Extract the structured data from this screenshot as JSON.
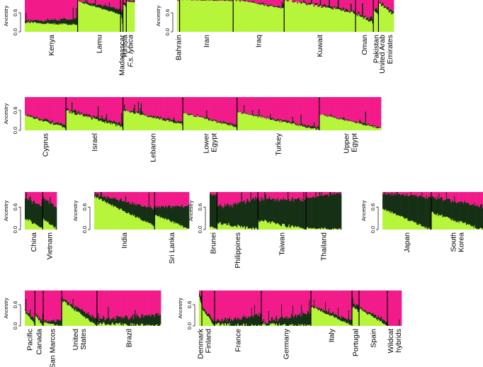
{
  "colors": {
    "clusterA": "#b7f53b",
    "clusterB": "#f21b8a",
    "clusterC": "#163016",
    "separator": "#000000"
  },
  "chart_data": [
    {
      "type": "bar",
      "stacked": true,
      "ylabel": "Ancestry",
      "ylim": [
        0,
        1
      ],
      "yticks": [
        "0.0",
        "0.6"
      ],
      "panels": [
        {
          "groups": [
            {
              "name": "Kenya",
              "n": 64,
              "a": [
                0.3,
                0.22
              ],
              "c": [
                0.04,
                0.18
              ],
              "sp": 0.06
            },
            {
              "name": "Lamu",
              "n": 52,
              "a": [
                0.96,
                0.55
              ],
              "c": [
                0.01,
                0.16
              ],
              "sp": 0.04
            },
            {
              "name": "Madagascar",
              "n": 3,
              "a": [
                0.55,
                0.3
              ],
              "c": [
                0.1,
                0.4
              ],
              "sp": 0.1
            },
            {
              "name": "Tunisia",
              "n": 4,
              "a": [
                0.85,
                0.8
              ],
              "c": [
                0.05,
                0.1
              ],
              "sp": 0.05
            },
            {
              "name": "F.s. lybica",
              "n": 10,
              "a": [
                0.95,
                0.93
              ],
              "c": [
                0.02,
                0.03
              ],
              "sp": 0.03
            }
          ]
        },
        {
          "groups": [
            {
              "name": "Bahrain",
              "n": 2,
              "a": [
                0.97,
                0.97
              ],
              "c": [
                0.0,
                0.0
              ],
              "sp": 0.01
            },
            {
              "name": "Iran",
              "n": 42,
              "a": [
                1.0,
                0.97
              ],
              "c": [
                0.0,
                0.01
              ],
              "sp": 0.02
            },
            {
              "name": "Iraq",
              "n": 40,
              "a": [
                1.0,
                0.74
              ],
              "c": [
                0.0,
                0.04
              ],
              "sp": 0.05
            },
            {
              "name": "Kuwait",
              "n": 56,
              "a": [
                1.0,
                0.6
              ],
              "c": [
                0.0,
                0.05
              ],
              "sp": 0.08
            },
            {
              "name": "Oman",
              "n": 14,
              "a": [
                0.55,
                0.3
              ],
              "c": [
                0.02,
                0.1
              ],
              "sp": 0.1
            },
            {
              "name": "Pakistan",
              "n": 4,
              "a": [
                0.7,
                0.6
              ],
              "c": [
                0.05,
                0.1
              ],
              "sp": 0.1
            },
            {
              "name": "United Arab Emirates",
              "n": 12,
              "a": [
                0.9,
                0.55
              ],
              "c": [
                0.01,
                0.08
              ],
              "sp": 0.08
            }
          ]
        },
        {
          "groups": [
            {
              "name": "Cyprus",
              "n": 44,
              "a": [
                0.45,
                0.08
              ],
              "c": [
                0.02,
                0.06
              ],
              "sp": 0.06
            },
            {
              "name": "Israel",
              "n": 61,
              "a": [
                0.58,
                0.1
              ],
              "c": [
                0.01,
                0.08
              ],
              "sp": 0.08
            },
            {
              "name": "Lebanon",
              "n": 64,
              "a": [
                0.6,
                0.18
              ],
              "c": [
                0.01,
                0.06
              ],
              "sp": 0.06
            },
            {
              "name": "Lower Egypt",
              "n": 58,
              "a": [
                0.52,
                0.1
              ],
              "c": [
                0.0,
                0.05
              ],
              "sp": 0.06
            },
            {
              "name": "Turkey",
              "n": 88,
              "a": [
                0.55,
                0.02
              ],
              "c": [
                0.0,
                0.05
              ],
              "sp": 0.06
            },
            {
              "name": "Upper Egypt",
              "n": 66,
              "a": [
                0.48,
                0.06
              ],
              "c": [
                0.0,
                0.03
              ],
              "sp": 0.05
            }
          ]
        },
        {
          "groups": [
            {
              "name": "China",
              "n": 18,
              "a": [
                0.3,
                0.02
              ],
              "c": [
                0.55,
                0.55
              ],
              "sp": 0.08
            },
            {
              "name": "Vietnam",
              "n": 14,
              "a": [
                0.28,
                0.02
              ],
              "c": [
                0.55,
                0.55
              ],
              "sp": 0.08
            }
          ]
        },
        {
          "groups": [
            {
              "name": "India",
              "n": 70,
              "a": [
                0.88,
                0.1
              ],
              "c": [
                0.06,
                0.45
              ],
              "sp": 0.06
            },
            {
              "name": "Sri Lanka",
              "n": 40,
              "a": [
                0.4,
                0.02
              ],
              "c": [
                0.2,
                0.6
              ],
              "sp": 0.06
            }
          ]
        },
        {
          "groups": [
            {
              "name": "Brunei",
              "n": 8,
              "a": [
                0.1,
                0.02
              ],
              "c": [
                0.85,
                0.85
              ],
              "sp": 0.08
            },
            {
              "name": "Philippines",
              "n": 44,
              "a": [
                0.18,
                0.0
              ],
              "c": [
                0.4,
                0.8
              ],
              "sp": 0.1
            },
            {
              "name": "Taiwan",
              "n": 52,
              "a": [
                0.25,
                0.0
              ],
              "c": [
                0.55,
                0.75
              ],
              "sp": 0.1
            },
            {
              "name": "Thailand",
              "n": 38,
              "a": [
                0.05,
                0.0
              ],
              "c": [
                0.8,
                0.95
              ],
              "sp": 0.06
            }
          ]
        },
        {
          "groups": [
            {
              "name": "Japan",
              "n": 66,
              "a": [
                0.55,
                0.0
              ],
              "c": [
                0.4,
                0.85
              ],
              "sp": 0.06
            },
            {
              "name": "South Korea",
              "n": 70,
              "a": [
                0.45,
                0.0
              ],
              "c": [
                0.4,
                0.6
              ],
              "sp": 0.08
            }
          ]
        },
        {
          "groups": [
            {
              "name": "Pacific",
              "n": 12,
              "a": [
                0.4,
                0.05
              ],
              "c": [
                0.04,
                0.1
              ],
              "sp": 0.06
            },
            {
              "name": "Canada",
              "n": 10,
              "a": [
                0.3,
                0.02
              ],
              "c": [
                0.03,
                0.12
              ],
              "sp": 0.06
            },
            {
              "name": "San Marcos",
              "n": 22,
              "a": [
                0.1,
                0.0
              ],
              "c": [
                0.02,
                0.14
              ],
              "sp": 0.06
            },
            {
              "name": "United States",
              "n": 42,
              "a": [
                0.72,
                0.0
              ],
              "c": [
                0.02,
                0.18
              ],
              "sp": 0.08
            },
            {
              "name": "Brazil",
              "n": 76,
              "a": [
                0.08,
                0.0
              ],
              "c": [
                0.1,
                0.3
              ],
              "sp": 0.1
            }
          ]
        },
        {
          "groups": [
            {
              "name": "Denmark",
              "n": 4,
              "a": [
                0.8,
                0.6
              ],
              "c": [
                0.1,
                0.2
              ],
              "sp": 0.05
            },
            {
              "name": "Finland",
              "n": 18,
              "a": [
                0.5,
                0.02
              ],
              "c": [
                0.04,
                0.12
              ],
              "sp": 0.06
            },
            {
              "name": "France",
              "n": 66,
              "a": [
                0.06,
                0.0
              ],
              "c": [
                0.05,
                0.3
              ],
              "sp": 0.1
            },
            {
              "name": "Germany",
              "n": 70,
              "a": [
                0.05,
                0.0
              ],
              "c": [
                0.05,
                0.35
              ],
              "sp": 0.1
            },
            {
              "name": "Italy",
              "n": 58,
              "a": [
                0.55,
                0.02
              ],
              "c": [
                0.02,
                0.12
              ],
              "sp": 0.06
            },
            {
              "name": "Portugal",
              "n": 10,
              "a": [
                0.55,
                0.4
              ],
              "c": [
                0.05,
                0.15
              ],
              "sp": 0.06
            },
            {
              "name": "Spain",
              "n": 40,
              "a": [
                0.48,
                0.02
              ],
              "c": [
                0.02,
                0.1
              ],
              "sp": 0.06
            },
            {
              "name": "Wildcat hybrids",
              "n": 20,
              "a": [
                0.0,
                0.0
              ],
              "c": [
                0.0,
                0.0
              ],
              "sp": 0.01
            }
          ]
        }
      ]
    }
  ]
}
